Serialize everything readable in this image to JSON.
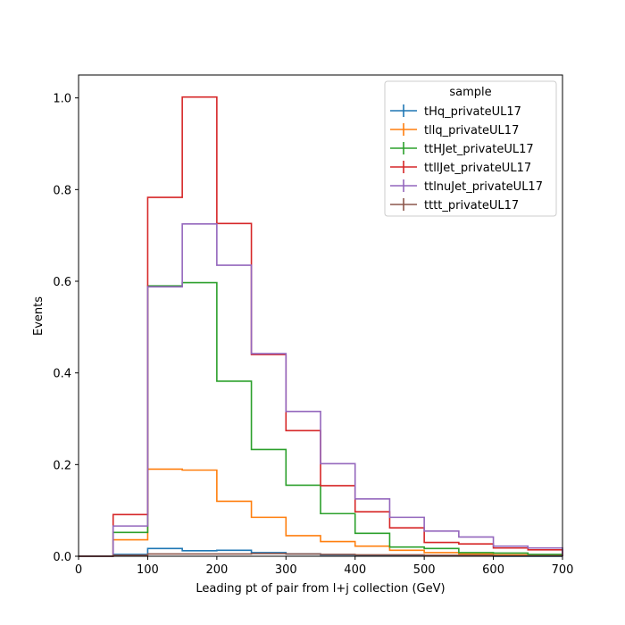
{
  "chart_data": {
    "type": "step-histogram",
    "xlabel": "Leading pt of pair from l+j collection (GeV)",
    "ylabel": "Events",
    "xlim": [
      0,
      700
    ],
    "ylim": [
      0,
      1.05
    ],
    "xticks": [
      0,
      100,
      200,
      300,
      400,
      500,
      600,
      700
    ],
    "yticks": [
      0.0,
      0.2,
      0.4,
      0.6,
      0.8,
      1.0
    ],
    "xtick_labels": [
      "0",
      "100",
      "200",
      "300",
      "400",
      "500",
      "600",
      "700"
    ],
    "ytick_labels": [
      "0.0",
      "0.2",
      "0.4",
      "0.6",
      "0.8",
      "1.0"
    ],
    "legend_title": "sample",
    "legend_location": "top-right",
    "bin_edges": [
      0,
      50,
      100,
      150,
      200,
      250,
      300,
      350,
      400,
      450,
      500,
      550,
      600,
      650,
      700
    ],
    "series": [
      {
        "name": "tHq_privateUL17",
        "color": "#1f77b4",
        "values": [
          0.0,
          0.004,
          0.017,
          0.012,
          0.013,
          0.008,
          0.005,
          0.003,
          0.002,
          0.001,
          0.001,
          0.001,
          0.0,
          0.0
        ]
      },
      {
        "name": "tllq_privateUL17",
        "color": "#ff7f0e",
        "values": [
          0.0,
          0.036,
          0.19,
          0.188,
          0.12,
          0.085,
          0.045,
          0.032,
          0.022,
          0.013,
          0.008,
          0.005,
          0.003,
          0.002
        ]
      },
      {
        "name": "ttHJet_privateUL17",
        "color": "#2ca02c",
        "values": [
          0.0,
          0.052,
          0.59,
          0.597,
          0.382,
          0.233,
          0.155,
          0.093,
          0.05,
          0.02,
          0.017,
          0.008,
          0.007,
          0.004
        ]
      },
      {
        "name": "ttllJet_privateUL17",
        "color": "#d62728",
        "values": [
          0.0,
          0.091,
          0.783,
          1.002,
          0.726,
          0.44,
          0.274,
          0.154,
          0.097,
          0.062,
          0.03,
          0.027,
          0.018,
          0.014
        ]
      },
      {
        "name": "ttlnuJet_privateUL17",
        "color": "#9467bd",
        "values": [
          0.0,
          0.066,
          0.588,
          0.725,
          0.635,
          0.442,
          0.316,
          0.202,
          0.125,
          0.085,
          0.055,
          0.042,
          0.022,
          0.018
        ]
      },
      {
        "name": "tttt_privateUL17",
        "color": "#8c564b",
        "values": [
          0.0,
          0.002,
          0.005,
          0.005,
          0.005,
          0.006,
          0.005,
          0.004,
          0.003,
          0.003,
          0.002,
          0.002,
          0.001,
          0.001
        ]
      }
    ]
  }
}
